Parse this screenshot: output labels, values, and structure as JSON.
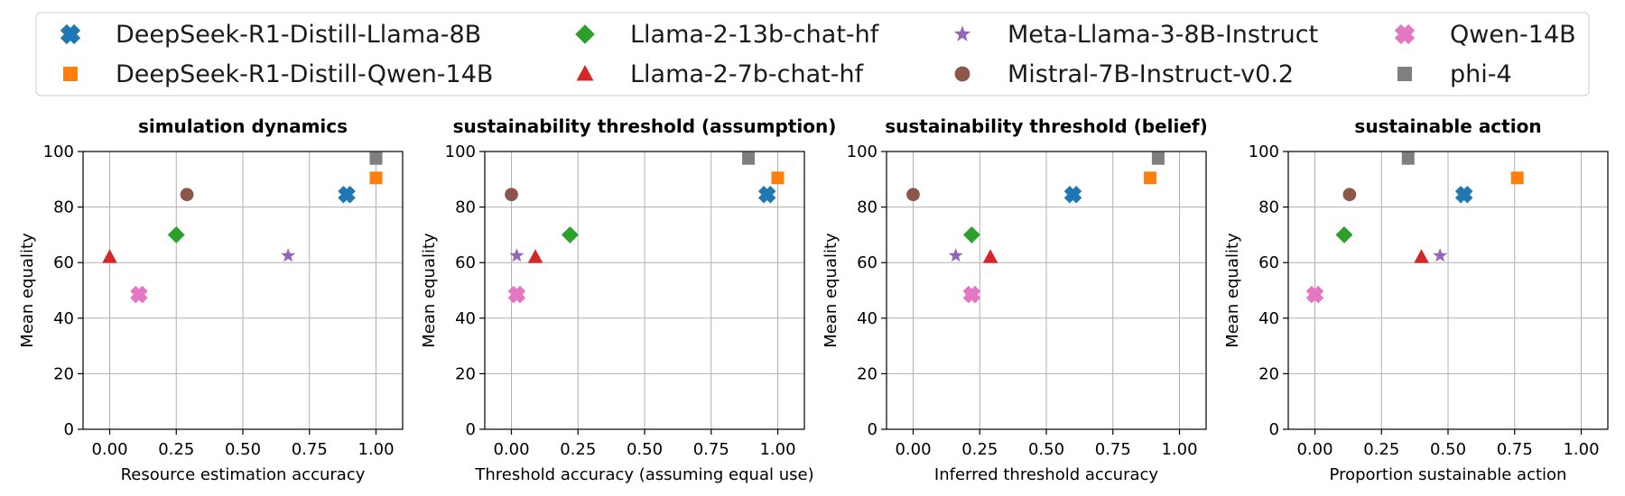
{
  "colors": {
    "DeepSeek-R1-Distill-Llama-8B": "#1f77b4",
    "DeepSeek-R1-Distill-Qwen-14B": "#ff7f0e",
    "Llama-2-13b-chat-hf": "#2ca02c",
    "Llama-2-7b-chat-hf": "#d62728",
    "Meta-Llama-3-8B-Instruct": "#9467bd",
    "Mistral-7B-Instruct-v0.2": "#8c564b",
    "Qwen-14B": "#e377c2",
    "phi-4": "#7f7f7f"
  },
  "legend": [
    {
      "name": "DeepSeek-R1-Distill-Llama-8B",
      "marker": "x-filled"
    },
    {
      "name": "DeepSeek-R1-Distill-Qwen-14B",
      "marker": "square"
    },
    {
      "name": "Llama-2-13b-chat-hf",
      "marker": "diamond"
    },
    {
      "name": "Llama-2-7b-chat-hf",
      "marker": "triangle"
    },
    {
      "name": "Meta-Llama-3-8B-Instruct",
      "marker": "star"
    },
    {
      "name": "Mistral-7B-Instruct-v0.2",
      "marker": "circle"
    },
    {
      "name": "Qwen-14B",
      "marker": "x-filled"
    },
    {
      "name": "phi-4",
      "marker": "square"
    }
  ],
  "chart_data": [
    {
      "type": "scatter",
      "title": "simulation dynamics",
      "xlabel": "Resource estimation accuracy",
      "ylabel": "Mean equality",
      "xlim": [
        -0.1,
        1.1
      ],
      "ylim": [
        0,
        100
      ],
      "xticks": [
        0,
        0.25,
        0.5,
        0.75,
        1.0
      ],
      "xtick_labels": [
        "0.00",
        "0.25",
        "0.50",
        "0.75",
        "1.00"
      ],
      "yticks": [
        0,
        20,
        40,
        60,
        80,
        100
      ],
      "ytick_labels": [
        "0",
        "20",
        "40",
        "60",
        "80",
        "100"
      ],
      "grid": true,
      "points": [
        {
          "series": "DeepSeek-R1-Distill-Llama-8B",
          "x": 0.89,
          "y": 84.5
        },
        {
          "series": "DeepSeek-R1-Distill-Qwen-14B",
          "x": 1.0,
          "y": 90.5
        },
        {
          "series": "Llama-2-13b-chat-hf",
          "x": 0.25,
          "y": 70
        },
        {
          "series": "Llama-2-7b-chat-hf",
          "x": 0.0,
          "y": 62
        },
        {
          "series": "Meta-Llama-3-8B-Instruct",
          "x": 0.67,
          "y": 62.5
        },
        {
          "series": "Mistral-7B-Instruct-v0.2",
          "x": 0.29,
          "y": 84.5
        },
        {
          "series": "Qwen-14B",
          "x": 0.11,
          "y": 48.5
        },
        {
          "series": "phi-4",
          "x": 1.0,
          "y": 97.5
        }
      ]
    },
    {
      "type": "scatter",
      "title": "sustainability threshold (assumption)",
      "xlabel": "Threshold accuracy (assuming equal use)",
      "ylabel": "Mean equality",
      "xlim": [
        -0.1,
        1.1
      ],
      "ylim": [
        0,
        100
      ],
      "xticks": [
        0,
        0.25,
        0.5,
        0.75,
        1.0
      ],
      "xtick_labels": [
        "0.00",
        "0.25",
        "0.50",
        "0.75",
        "1.00"
      ],
      "yticks": [
        0,
        20,
        40,
        60,
        80,
        100
      ],
      "ytick_labels": [
        "0",
        "20",
        "40",
        "60",
        "80",
        "100"
      ],
      "grid": true,
      "points": [
        {
          "series": "DeepSeek-R1-Distill-Llama-8B",
          "x": 0.96,
          "y": 84.5
        },
        {
          "series": "DeepSeek-R1-Distill-Qwen-14B",
          "x": 1.0,
          "y": 90.5
        },
        {
          "series": "Llama-2-13b-chat-hf",
          "x": 0.22,
          "y": 70
        },
        {
          "series": "Llama-2-7b-chat-hf",
          "x": 0.09,
          "y": 62
        },
        {
          "series": "Meta-Llama-3-8B-Instruct",
          "x": 0.02,
          "y": 62.5
        },
        {
          "series": "Mistral-7B-Instruct-v0.2",
          "x": 0.0,
          "y": 84.5
        },
        {
          "series": "Qwen-14B",
          "x": 0.02,
          "y": 48.5
        },
        {
          "series": "phi-4",
          "x": 0.89,
          "y": 97.5
        }
      ]
    },
    {
      "type": "scatter",
      "title": "sustainability threshold (belief)",
      "xlabel": "Inferred threshold accuracy",
      "ylabel": "Mean equality",
      "xlim": [
        -0.1,
        1.1
      ],
      "ylim": [
        0,
        100
      ],
      "xticks": [
        0,
        0.25,
        0.5,
        0.75,
        1.0
      ],
      "xtick_labels": [
        "0.00",
        "0.25",
        "0.50",
        "0.75",
        "1.00"
      ],
      "yticks": [
        0,
        20,
        40,
        60,
        80,
        100
      ],
      "ytick_labels": [
        "0",
        "20",
        "40",
        "60",
        "80",
        "100"
      ],
      "grid": true,
      "points": [
        {
          "series": "DeepSeek-R1-Distill-Llama-8B",
          "x": 0.6,
          "y": 84.5
        },
        {
          "series": "DeepSeek-R1-Distill-Qwen-14B",
          "x": 0.89,
          "y": 90.5
        },
        {
          "series": "Llama-2-13b-chat-hf",
          "x": 0.22,
          "y": 70
        },
        {
          "series": "Llama-2-7b-chat-hf",
          "x": 0.29,
          "y": 62
        },
        {
          "series": "Meta-Llama-3-8B-Instruct",
          "x": 0.16,
          "y": 62.5
        },
        {
          "series": "Mistral-7B-Instruct-v0.2",
          "x": 0.0,
          "y": 84.5
        },
        {
          "series": "Qwen-14B",
          "x": 0.22,
          "y": 48.5
        },
        {
          "series": "phi-4",
          "x": 0.92,
          "y": 97.5
        }
      ]
    },
    {
      "type": "scatter",
      "title": "sustainable action",
      "xlabel": "Proportion sustainable action",
      "ylabel": "Mean equality",
      "xlim": [
        -0.1,
        1.1
      ],
      "ylim": [
        0,
        100
      ],
      "xticks": [
        0,
        0.25,
        0.5,
        0.75,
        1.0
      ],
      "xtick_labels": [
        "0.00",
        "0.25",
        "0.50",
        "0.75",
        "1.00"
      ],
      "yticks": [
        0,
        20,
        40,
        60,
        80,
        100
      ],
      "ytick_labels": [
        "0",
        "20",
        "40",
        "60",
        "80",
        "100"
      ],
      "grid": true,
      "points": [
        {
          "series": "DeepSeek-R1-Distill-Llama-8B",
          "x": 0.56,
          "y": 84.5
        },
        {
          "series": "DeepSeek-R1-Distill-Qwen-14B",
          "x": 0.76,
          "y": 90.5
        },
        {
          "series": "Llama-2-13b-chat-hf",
          "x": 0.11,
          "y": 70
        },
        {
          "series": "Llama-2-7b-chat-hf",
          "x": 0.4,
          "y": 62
        },
        {
          "series": "Meta-Llama-3-8B-Instruct",
          "x": 0.47,
          "y": 62.5
        },
        {
          "series": "Mistral-7B-Instruct-v0.2",
          "x": 0.13,
          "y": 84.5
        },
        {
          "series": "Qwen-14B",
          "x": 0.0,
          "y": 48.5
        },
        {
          "series": "phi-4",
          "x": 0.35,
          "y": 97.5
        }
      ]
    }
  ]
}
